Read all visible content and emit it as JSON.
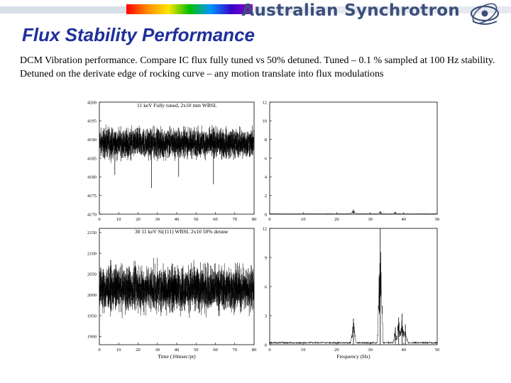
{
  "header": {
    "brand": "Australian Synchrotron",
    "logo_icon": "synchrotron-logo-icon",
    "colors": {
      "brand": "#3c4f7a",
      "title": "#1f2f9a",
      "rainbow": [
        "#ff0000",
        "#ff8c00",
        "#ffe600",
        "#00c000",
        "#0096ff",
        "#3a00c8",
        "#9600c8"
      ]
    }
  },
  "page": {
    "title": "Flux Stability Performance",
    "description": "DCM Vibration performance.  Compare IC flux fully tuned vs 50% detuned.  Tuned – 0.1 % sampled at 100 Hz stability.  Detuned on the derivate edge of rocking curve – any motion translate into flux modulations"
  },
  "chart_data": [
    {
      "id": "tuned-time",
      "type": "line",
      "title": "11 keV Fully tuned, 2x10 mm WBSL",
      "xlabel": "",
      "ylabel": "",
      "xlim": [
        0,
        80
      ],
      "ylim": [
        4170,
        4200
      ],
      "xticks": [
        0,
        10,
        20,
        30,
        40,
        50,
        60,
        70,
        80
      ],
      "yticks": [
        4170,
        4175,
        4180,
        4185,
        4190,
        4195,
        4200
      ],
      "series": [
        {
          "mean": 4189,
          "noise_amplitude": 3.5,
          "points": 3500,
          "dips": [
            {
              "x": 27,
              "y": 4177
            },
            {
              "x": 59,
              "y": 4178
            },
            {
              "x": 41,
              "y": 4180
            },
            {
              "x": 8,
              "y": 4180.5
            }
          ]
        }
      ]
    },
    {
      "id": "tuned-fft",
      "type": "line",
      "title": "",
      "xlabel": "",
      "ylabel": "",
      "xlim": [
        0,
        50
      ],
      "ylim": [
        0,
        12
      ],
      "xticks": [
        0,
        10,
        20,
        30,
        40,
        50
      ],
      "yticks": [
        0,
        2,
        4,
        6,
        8,
        10,
        12
      ],
      "series": [
        {
          "baseline": 0.05,
          "peaks": [
            {
              "x": 25,
              "y": 0.5
            },
            {
              "x": 33,
              "y": 0.3
            },
            {
              "x": 37.5,
              "y": 0.25
            }
          ]
        }
      ]
    },
    {
      "id": "detuned-time",
      "type": "line",
      "title": "30 11 keV Si(111) WBSL 2x10 50% detune",
      "xlabel": "Time (10msec/pt)",
      "ylabel": "",
      "xlim": [
        0,
        80
      ],
      "ylim": [
        1880,
        2160
      ],
      "xticks": [
        0,
        10,
        20,
        30,
        40,
        50,
        60,
        70,
        80
      ],
      "yticks": [
        1900,
        1950,
        2000,
        2050,
        2100,
        2150
      ],
      "series": [
        {
          "mean": 2015,
          "noise_amplitude": 48,
          "points": 3500
        }
      ]
    },
    {
      "id": "detuned-fft",
      "type": "line",
      "title": "",
      "xlabel": "Frequency (Hz)",
      "ylabel": "",
      "xlim": [
        0,
        50
      ],
      "ylim": [
        0,
        12
      ],
      "xticks": [
        0,
        10,
        20,
        30,
        40,
        50
      ],
      "yticks": [
        0,
        3,
        6,
        9,
        12
      ],
      "series": [
        {
          "baseline": 0.2,
          "peaks": [
            {
              "x": 25,
              "y": 2.7
            },
            {
              "x": 33,
              "y": 12
            },
            {
              "x": 37.5,
              "y": 1.8
            },
            {
              "x": 38.5,
              "y": 2.8
            },
            {
              "x": 39.5,
              "y": 3.2
            },
            {
              "x": 40.5,
              "y": 2.1
            }
          ]
        }
      ]
    }
  ]
}
